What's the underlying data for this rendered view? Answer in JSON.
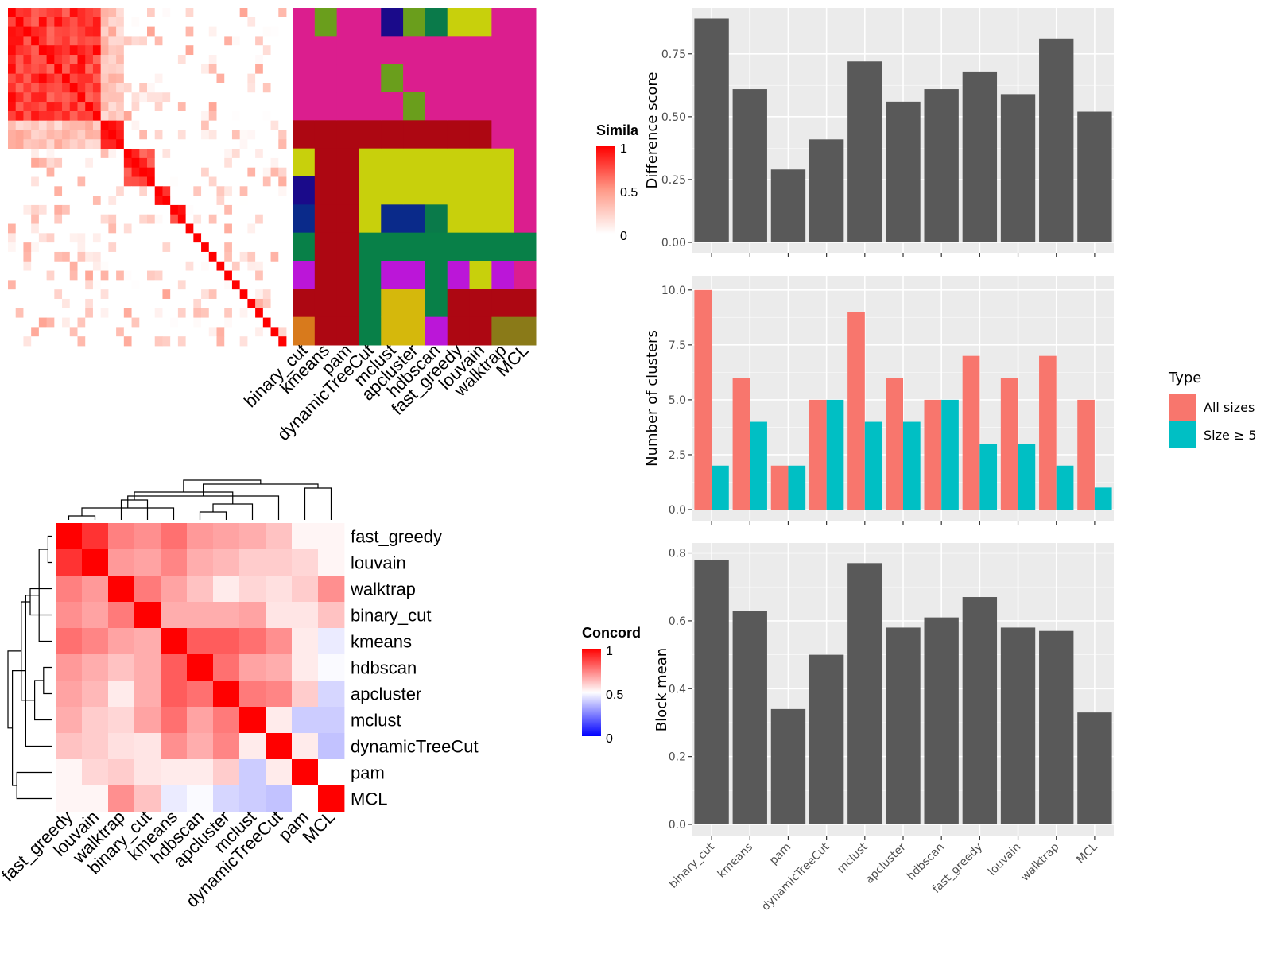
{
  "methods": [
    "binary_cut",
    "kmeans",
    "pam",
    "dynamicTreeCut",
    "mclust",
    "apcluster",
    "hdbscan",
    "fast_greedy",
    "louvain",
    "walktrap",
    "MCL"
  ],
  "top_heatmap": {
    "legend_title": "Simila",
    "legend_ticks": [
      "1",
      "0.5",
      "0"
    ],
    "n_terms": 36,
    "blocks": [
      [
        0,
        12
      ],
      [
        12,
        15
      ],
      [
        15,
        19
      ],
      [
        19,
        21
      ],
      [
        21,
        23
      ],
      [
        23,
        24
      ],
      [
        24,
        25
      ],
      [
        25,
        26
      ],
      [
        26,
        27
      ],
      [
        27,
        28
      ],
      [
        28,
        29
      ],
      [
        29,
        30
      ],
      [
        30,
        31
      ],
      [
        31,
        32
      ],
      [
        32,
        33
      ],
      [
        33,
        34
      ],
      [
        34,
        35
      ],
      [
        35,
        36
      ]
    ],
    "cluster_colors": {
      "magenta": "#db1e8e",
      "green": "#6a9e1c",
      "navy": "#1a0a8a",
      "teal": "#0a7a4a",
      "yellow": "#c8d00c",
      "darkred": "#ad0712",
      "blue": "#0a2a8a",
      "seagreen": "#088048",
      "purple": "#bb16d8",
      "gold": "#d5b80c",
      "olive": "#8a7a18",
      "orange": "#d87a1c"
    },
    "assignments": [
      [
        "magenta",
        "magenta",
        "magenta",
        "magenta",
        "darkred",
        "yellow",
        "navy",
        "blue",
        "seagreen",
        "purple",
        "darkred",
        "orange"
      ],
      [
        "green",
        "magenta",
        "magenta",
        "magenta",
        "darkred",
        "darkred",
        "darkred",
        "darkred",
        "darkred",
        "darkred",
        "darkred",
        "darkred"
      ],
      [
        "magenta",
        "magenta",
        "magenta",
        "magenta",
        "darkred",
        "darkred",
        "darkred",
        "darkred",
        "darkred",
        "darkred",
        "darkred",
        "darkred"
      ],
      [
        "magenta",
        "magenta",
        "magenta",
        "magenta",
        "darkred",
        "yellow",
        "yellow",
        "yellow",
        "seagreen",
        "seagreen",
        "seagreen",
        "seagreen"
      ],
      [
        "navy",
        "magenta",
        "green",
        "magenta",
        "darkred",
        "yellow",
        "yellow",
        "blue",
        "seagreen",
        "purple",
        "gold",
        "gold"
      ],
      [
        "green",
        "magenta",
        "magenta",
        "green",
        "darkred",
        "yellow",
        "yellow",
        "blue",
        "seagreen",
        "purple",
        "gold",
        "gold"
      ],
      [
        "teal",
        "magenta",
        "magenta",
        "magenta",
        "darkred",
        "yellow",
        "yellow",
        "teal",
        "seagreen",
        "seagreen",
        "seagreen",
        "purple"
      ],
      [
        "yellow",
        "magenta",
        "magenta",
        "magenta",
        "darkred",
        "yellow",
        "yellow",
        "yellow",
        "seagreen",
        "purple",
        "darkred",
        "darkred"
      ],
      [
        "yellow",
        "magenta",
        "magenta",
        "magenta",
        "darkred",
        "yellow",
        "yellow",
        "yellow",
        "seagreen",
        "yellow",
        "darkred",
        "darkred"
      ],
      [
        "magenta",
        "magenta",
        "magenta",
        "magenta",
        "magenta",
        "yellow",
        "yellow",
        "yellow",
        "seagreen",
        "purple",
        "darkred",
        "olive"
      ],
      [
        "magenta",
        "magenta",
        "magenta",
        "magenta",
        "magenta",
        "magenta",
        "magenta",
        "magenta",
        "seagreen",
        "magenta",
        "darkred",
        "olive"
      ]
    ]
  },
  "concordance_heatmap": {
    "legend_title": "Concord",
    "legend_ticks": [
      "1",
      "0.5",
      "0"
    ],
    "order": [
      "fast_greedy",
      "louvain",
      "walktrap",
      "binary_cut",
      "kmeans",
      "hdbscan",
      "apcluster",
      "mclust",
      "dynamicTreeCut",
      "pam",
      "MCL"
    ],
    "matrix": [
      [
        1.0,
        0.9,
        0.75,
        0.72,
        0.78,
        0.7,
        0.68,
        0.66,
        0.62,
        0.52,
        0.52
      ],
      [
        0.9,
        1.0,
        0.7,
        0.68,
        0.74,
        0.66,
        0.64,
        0.6,
        0.6,
        0.58,
        0.52
      ],
      [
        0.75,
        0.7,
        1.0,
        0.76,
        0.68,
        0.62,
        0.54,
        0.58,
        0.56,
        0.6,
        0.72
      ],
      [
        0.72,
        0.68,
        0.76,
        1.0,
        0.66,
        0.66,
        0.66,
        0.68,
        0.55,
        0.55,
        0.62
      ],
      [
        0.78,
        0.74,
        0.68,
        0.66,
        1.0,
        0.82,
        0.82,
        0.78,
        0.72,
        0.54,
        0.46
      ],
      [
        0.7,
        0.66,
        0.62,
        0.66,
        0.82,
        1.0,
        0.78,
        0.68,
        0.66,
        0.54,
        0.49
      ],
      [
        0.68,
        0.64,
        0.54,
        0.66,
        0.82,
        0.78,
        1.0,
        0.76,
        0.74,
        0.6,
        0.42
      ],
      [
        0.66,
        0.6,
        0.58,
        0.68,
        0.78,
        0.68,
        0.76,
        1.0,
        0.54,
        0.4,
        0.4
      ],
      [
        0.62,
        0.6,
        0.56,
        0.55,
        0.72,
        0.66,
        0.74,
        0.54,
        1.0,
        0.54,
        0.38
      ],
      [
        0.52,
        0.58,
        0.6,
        0.55,
        0.54,
        0.54,
        0.6,
        0.4,
        0.54,
        1.0,
        0.5
      ],
      [
        0.52,
        0.52,
        0.72,
        0.62,
        0.46,
        0.49,
        0.42,
        0.4,
        0.38,
        0.5,
        1.0
      ]
    ],
    "dendrogram_merges": [
      [
        0,
        1
      ],
      [
        5,
        6
      ],
      [
        4,
        11
      ],
      [
        12,
        7
      ],
      [
        2,
        3
      ],
      [
        13,
        8
      ],
      [
        15,
        14
      ],
      [
        9,
        10
      ],
      [
        18,
        16
      ],
      [
        17,
        19
      ]
    ]
  },
  "chart_data": [
    {
      "type": "bar",
      "categories": [
        "binary_cut",
        "kmeans",
        "pam",
        "dynamicTreeCut",
        "mclust",
        "apcluster",
        "hdbscan",
        "fast_greedy",
        "louvain",
        "walktrap",
        "MCL"
      ],
      "values": [
        0.89,
        0.61,
        0.29,
        0.41,
        0.72,
        0.56,
        0.61,
        0.68,
        0.59,
        0.81,
        0.52
      ],
      "ylabel": "Difference score",
      "ylim": [
        0,
        0.92
      ],
      "yticks": [
        "0.00",
        "0.25",
        "0.50",
        "0.75"
      ],
      "bar_color": "#595959",
      "grid": true
    },
    {
      "type": "bar",
      "categories": [
        "binary_cut",
        "kmeans",
        "pam",
        "dynamicTreeCut",
        "mclust",
        "apcluster",
        "hdbscan",
        "fast_greedy",
        "louvain",
        "walktrap",
        "MCL"
      ],
      "series": [
        {
          "name": "All sizes",
          "values": [
            10,
            6,
            2,
            5,
            9,
            6,
            5,
            7,
            6,
            7,
            5
          ],
          "color": "#f8766d"
        },
        {
          "name": "Size ≥ 5",
          "values": [
            2,
            4,
            2,
            5,
            4,
            4,
            5,
            3,
            3,
            2,
            1
          ],
          "color": "#00bfc4"
        }
      ],
      "ylabel": "Number of clusters",
      "ylim": [
        0,
        10.5
      ],
      "yticks": [
        "0.0",
        "2.5",
        "5.0",
        "7.5",
        "10.0"
      ],
      "legend_title": "Type",
      "legend": "right",
      "grid": true
    },
    {
      "type": "bar",
      "categories": [
        "binary_cut",
        "kmeans",
        "pam",
        "dynamicTreeCut",
        "mclust",
        "apcluster",
        "hdbscan",
        "fast_greedy",
        "louvain",
        "walktrap",
        "MCL"
      ],
      "values": [
        0.78,
        0.63,
        0.34,
        0.5,
        0.77,
        0.58,
        0.61,
        0.67,
        0.58,
        0.57,
        0.33
      ],
      "ylabel": "Block mean",
      "ylim": [
        0,
        0.82
      ],
      "yticks": [
        "0.0",
        "0.2",
        "0.4",
        "0.6",
        "0.8"
      ],
      "bar_color": "#595959",
      "grid": true
    }
  ]
}
